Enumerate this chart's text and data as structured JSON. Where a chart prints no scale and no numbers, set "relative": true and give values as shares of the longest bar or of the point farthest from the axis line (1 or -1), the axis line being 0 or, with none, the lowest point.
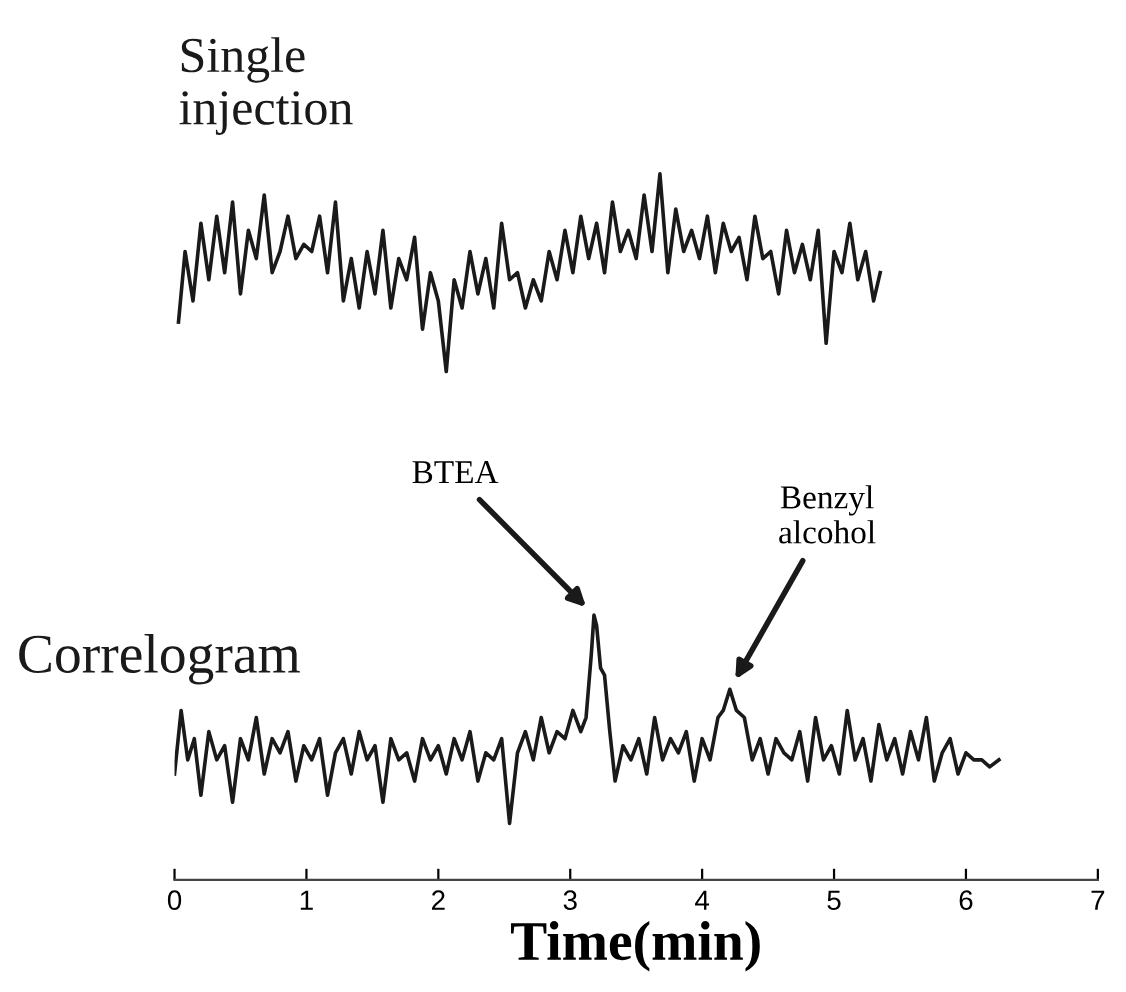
{
  "chart_data": {
    "type": "line",
    "relative": true,
    "xlim": [
      0,
      7
    ],
    "xticks": [
      0,
      1,
      2,
      3,
      4,
      5,
      6,
      7
    ],
    "xlabel": "Time(min)",
    "annotations": [
      {
        "text": "BTEA",
        "x": 3.18,
        "y": 0.375
      },
      {
        "text": "Benzyl alcohol",
        "x": 4.21,
        "y": 0.27
      }
    ],
    "series": [
      {
        "name": "Single injection",
        "color": "#1a1a1a",
        "x": [
          0.03,
          0.08,
          0.14,
          0.2,
          0.26,
          0.32,
          0.38,
          0.44,
          0.5,
          0.56,
          0.62,
          0.68,
          0.74,
          0.8,
          0.86,
          0.92,
          0.98,
          1.04,
          1.1,
          1.16,
          1.22,
          1.28,
          1.34,
          1.4,
          1.46,
          1.52,
          1.58,
          1.64,
          1.7,
          1.76,
          1.82,
          1.88,
          1.94,
          2.0,
          2.06,
          2.12,
          2.18,
          2.24,
          2.3,
          2.36,
          2.42,
          2.48,
          2.54,
          2.6,
          2.66,
          2.72,
          2.78,
          2.84,
          2.9,
          2.96,
          3.02,
          3.08,
          3.14,
          3.2,
          3.26,
          3.32,
          3.38,
          3.44,
          3.5,
          3.56,
          3.62,
          3.68,
          3.74,
          3.8,
          3.86,
          3.92,
          3.98,
          4.04,
          4.1,
          4.16,
          4.22,
          4.28,
          4.34,
          4.4,
          4.46,
          4.52,
          4.58,
          4.64,
          4.7,
          4.76,
          4.82,
          4.88,
          4.94,
          5.0,
          5.06,
          5.12,
          5.18,
          5.24,
          5.3,
          5.35
        ],
        "values": [
          0.79,
          0.89,
          0.82,
          0.93,
          0.85,
          0.94,
          0.86,
          0.96,
          0.83,
          0.92,
          0.88,
          0.97,
          0.86,
          0.89,
          0.94,
          0.88,
          0.9,
          0.89,
          0.94,
          0.86,
          0.96,
          0.82,
          0.88,
          0.81,
          0.89,
          0.83,
          0.92,
          0.81,
          0.88,
          0.85,
          0.91,
          0.78,
          0.86,
          0.82,
          0.72,
          0.85,
          0.81,
          0.89,
          0.83,
          0.88,
          0.81,
          0.93,
          0.85,
          0.86,
          0.81,
          0.85,
          0.82,
          0.89,
          0.85,
          0.92,
          0.86,
          0.94,
          0.88,
          0.93,
          0.86,
          0.96,
          0.89,
          0.92,
          0.88,
          0.97,
          0.89,
          1.0,
          0.86,
          0.95,
          0.89,
          0.92,
          0.88,
          0.94,
          0.86,
          0.93,
          0.89,
          0.91,
          0.85,
          0.94,
          0.88,
          0.89,
          0.83,
          0.92,
          0.86,
          0.9,
          0.85,
          0.92,
          0.76,
          0.89,
          0.86,
          0.93,
          0.85,
          0.89,
          0.82,
          0.86
        ]
      },
      {
        "name": "Correlogram",
        "color": "#1a1a1a",
        "x": [
          0.0,
          0.05,
          0.1,
          0.15,
          0.2,
          0.26,
          0.32,
          0.38,
          0.44,
          0.5,
          0.56,
          0.62,
          0.68,
          0.74,
          0.8,
          0.86,
          0.92,
          0.98,
          1.04,
          1.1,
          1.16,
          1.22,
          1.28,
          1.34,
          1.4,
          1.46,
          1.52,
          1.58,
          1.64,
          1.7,
          1.76,
          1.82,
          1.88,
          1.94,
          2.0,
          2.06,
          2.12,
          2.18,
          2.24,
          2.3,
          2.36,
          2.42,
          2.48,
          2.54,
          2.6,
          2.66,
          2.72,
          2.78,
          2.84,
          2.9,
          2.96,
          3.02,
          3.08,
          3.12,
          3.16,
          3.18,
          3.2,
          3.23,
          3.26,
          3.3,
          3.34,
          3.4,
          3.46,
          3.52,
          3.58,
          3.64,
          3.7,
          3.76,
          3.82,
          3.88,
          3.94,
          4.0,
          4.06,
          4.12,
          4.16,
          4.21,
          4.26,
          4.32,
          4.38,
          4.44,
          4.5,
          4.56,
          4.62,
          4.68,
          4.74,
          4.8,
          4.86,
          4.92,
          4.98,
          5.04,
          5.1,
          5.16,
          5.22,
          5.28,
          5.34,
          5.4,
          5.46,
          5.52,
          5.58,
          5.64,
          5.7,
          5.76,
          5.82,
          5.88,
          5.94,
          6.0,
          6.06,
          6.12,
          6.18,
          6.25
        ],
        "values": [
          0.15,
          0.24,
          0.17,
          0.2,
          0.12,
          0.21,
          0.17,
          0.19,
          0.11,
          0.2,
          0.17,
          0.23,
          0.15,
          0.2,
          0.18,
          0.21,
          0.14,
          0.19,
          0.17,
          0.2,
          0.12,
          0.18,
          0.2,
          0.15,
          0.21,
          0.17,
          0.19,
          0.11,
          0.2,
          0.17,
          0.18,
          0.14,
          0.2,
          0.17,
          0.19,
          0.15,
          0.2,
          0.17,
          0.21,
          0.14,
          0.18,
          0.17,
          0.2,
          0.08,
          0.18,
          0.21,
          0.17,
          0.23,
          0.18,
          0.21,
          0.2,
          0.24,
          0.21,
          0.23,
          0.32,
          0.375,
          0.36,
          0.3,
          0.29,
          0.21,
          0.14,
          0.19,
          0.17,
          0.2,
          0.15,
          0.23,
          0.17,
          0.2,
          0.18,
          0.21,
          0.14,
          0.2,
          0.17,
          0.23,
          0.24,
          0.27,
          0.24,
          0.23,
          0.17,
          0.2,
          0.15,
          0.2,
          0.18,
          0.17,
          0.21,
          0.14,
          0.23,
          0.17,
          0.19,
          0.15,
          0.24,
          0.17,
          0.2,
          0.14,
          0.22,
          0.17,
          0.2,
          0.15,
          0.21,
          0.17,
          0.23,
          0.14,
          0.18,
          0.2,
          0.15,
          0.18,
          0.17,
          0.17,
          0.16,
          0.17
        ]
      }
    ]
  }
}
